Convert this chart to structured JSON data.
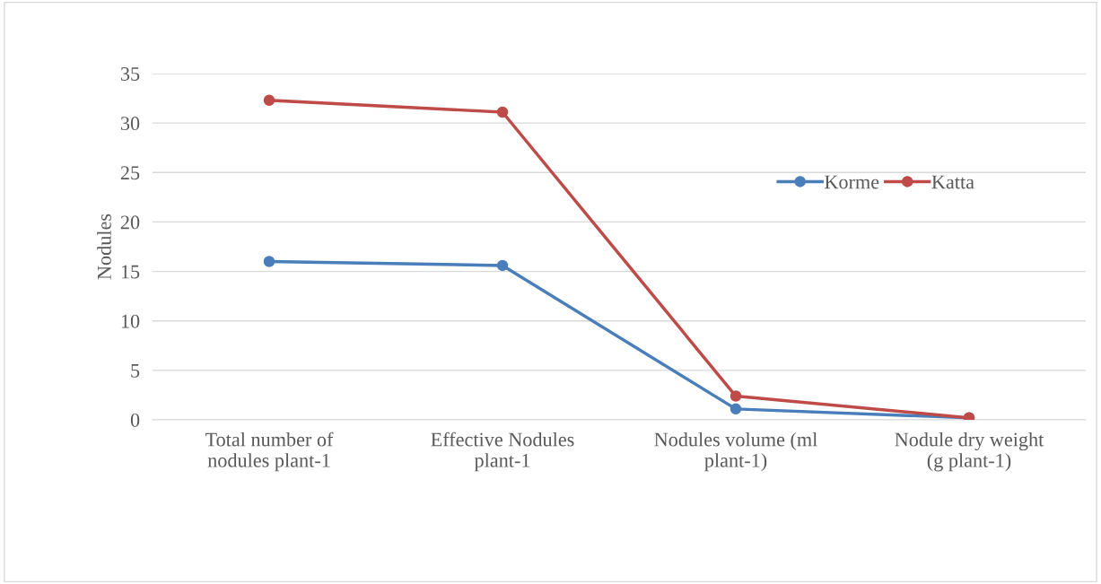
{
  "chart_data": {
    "type": "line",
    "ylabel": "Nodules",
    "categories": [
      "Total number of\nnodules plant-1",
      "Effective Nodules\nplant-1",
      "Nodules volume (ml\nplant-1)",
      "Nodule dry weight\n(g plant-1)"
    ],
    "series": [
      {
        "name": "Korme",
        "color": "#4a7ebb",
        "values": [
          16,
          15.6,
          1.1,
          0.2
        ]
      },
      {
        "name": "Katta",
        "color": "#be4b48",
        "values": [
          32.3,
          31.1,
          2.4,
          0.2
        ]
      }
    ],
    "ylim": [
      0,
      35
    ],
    "yticks": [
      0,
      5,
      10,
      15,
      20,
      25,
      30,
      35
    ],
    "grid": "y",
    "legend": "top right",
    "marker": "circle",
    "line_style": "solid"
  }
}
